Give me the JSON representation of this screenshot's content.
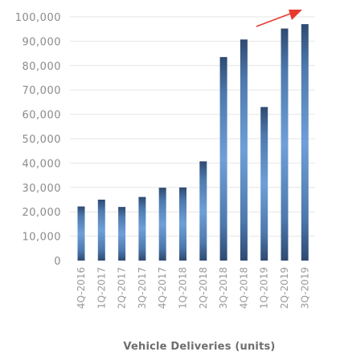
{
  "chart_data": {
    "type": "bar",
    "title": "",
    "xlabel": "Vehicle Deliveries (units)",
    "ylabel": "",
    "ylim": [
      0,
      100000
    ],
    "y_ticks": [
      0,
      10000,
      20000,
      30000,
      40000,
      50000,
      60000,
      70000,
      80000,
      90000,
      100000
    ],
    "y_tick_labels": [
      "0",
      "10,000",
      "20,000",
      "30,000",
      "40,000",
      "50,000",
      "60,000",
      "70,000",
      "80,000",
      "90,000",
      "100,000"
    ],
    "categories": [
      "4Q-2016",
      "1Q-2017",
      "2Q-2017",
      "3Q-2017",
      "4Q-2017",
      "1Q-2018",
      "2Q-2018",
      "3Q-2018",
      "4Q-2018",
      "1Q-2019",
      "2Q-2019",
      "3Q-2019"
    ],
    "values": [
      22200,
      25000,
      22000,
      26100,
      29900,
      30000,
      40700,
      83500,
      90700,
      63000,
      95200,
      97000
    ],
    "grid": true,
    "legend": "none",
    "annotations": [
      {
        "type": "arrow",
        "color": "#e8392f",
        "direction": "up-right"
      }
    ],
    "colors": {
      "bar_edge": "#2e4a72",
      "bar_center": "#6f9fd8",
      "grid": "#e6e6e6",
      "axis_text": "#8b8b8b",
      "title_text": "#6e6e6e",
      "arrow": "#e8392f"
    }
  }
}
